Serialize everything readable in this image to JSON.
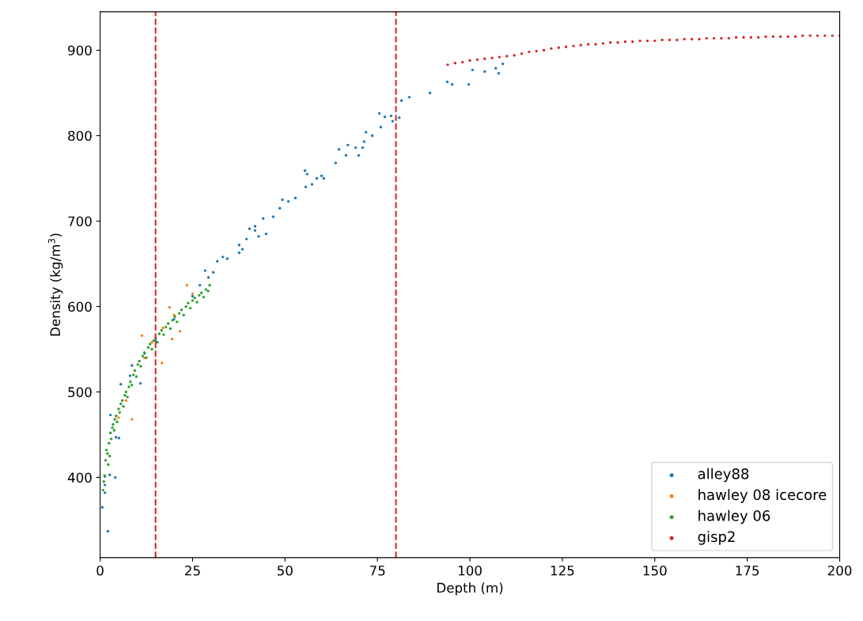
{
  "chart_data": {
    "type": "scatter",
    "xlabel": "Depth (m)",
    "ylabel": "Density (kg/m$^{3}$)",
    "xlim": [
      0,
      200
    ],
    "ylim": [
      306,
      945
    ],
    "xticks": [
      0,
      25,
      50,
      75,
      100,
      125,
      150,
      175,
      200
    ],
    "yticks": [
      400,
      500,
      600,
      700,
      800,
      900
    ],
    "grid": false,
    "legend": "bottom right",
    "marker": "circle",
    "ref_lines": [
      {
        "axis": "x",
        "value": 15,
        "color": "#d62728",
        "line_style": "dashed"
      },
      {
        "axis": "x",
        "value": 80,
        "color": "#d62728",
        "line_style": "dashed"
      }
    ],
    "series": [
      {
        "name": "alley88",
        "color": "#1f77b4",
        "x": [
          2.1,
          0.6,
          1.3,
          1.3,
          1.3,
          2.6,
          4.1,
          4.3,
          5.1,
          2.8,
          5.6,
          8.1,
          8.6,
          10.9,
          12,
          15,
          20,
          25,
          27,
          29.3,
          28.4,
          30.6,
          31.7,
          33.2,
          34.4,
          37.6,
          37.6,
          38.5,
          39.6,
          40.4,
          41.9,
          41.9,
          42.9,
          44.9,
          44.1,
          46.8,
          48.6,
          49.3,
          50.9,
          52.8,
          55.4,
          56.0,
          55.6,
          57.3,
          58.6,
          59.9,
          60.5,
          63.7,
          64.6,
          66.5,
          67.0,
          69.1,
          69.9,
          71.0,
          71.4,
          71.9,
          73.6,
          75.5,
          75.9,
          77.0,
          78.7,
          79.1,
          80.9,
          81.5,
          83.6,
          89.2,
          93.9,
          95.2,
          99.7,
          100.7,
          104,
          107,
          107.8,
          108.9
        ],
        "values": [
          337,
          365,
          382,
          391,
          401,
          403,
          400,
          447,
          446,
          473,
          509,
          519,
          531,
          510,
          545,
          560,
          585,
          612,
          625,
          634,
          642,
          640,
          653,
          658,
          656,
          672,
          663,
          667,
          679,
          691,
          694,
          689,
          682,
          685,
          703,
          705,
          715,
          725,
          723,
          727,
          759,
          755,
          740,
          743,
          750,
          753,
          750,
          768,
          784,
          777,
          789,
          786,
          777,
          786,
          793,
          804,
          800,
          826,
          810,
          822,
          823,
          817,
          821,
          841,
          845,
          850,
          863,
          860,
          860,
          877,
          875,
          879,
          873,
          884
        ]
      },
      {
        "name": "hawley 08 icecore",
        "color": "#ff7f0e",
        "x": [
          5,
          7,
          8.6,
          11.3,
          12,
          14,
          15,
          16.7,
          17,
          18.8,
          19.5,
          20,
          21.6,
          23.5,
          25
        ],
        "values": [
          470,
          490,
          468,
          566,
          540,
          558,
          null,
          534,
          575,
          599,
          562,
          590,
          571,
          625,
          615
        ]
      },
      {
        "name": "hawley 06",
        "color": "#2ca02c",
        "x": [
          0.8,
          1.0,
          1.2,
          1.5,
          1.7,
          2.0,
          2.2,
          2.4,
          2.6,
          2.8,
          3.0,
          3.3,
          3.5,
          3.8,
          4.0,
          4.3,
          4.6,
          5.0,
          5.3,
          5.6,
          6.0,
          6.3,
          6.7,
          7.0,
          7.4,
          7.8,
          8.2,
          8.6,
          9.0,
          9.4,
          9.8,
          10.2,
          10.6,
          11.0,
          11.5,
          12.0,
          12.5,
          13.0,
          13.5,
          14.0,
          14.5,
          15.0,
          15.5,
          16.0,
          16.6,
          17.2,
          17.8,
          18.4,
          19.0,
          19.6,
          20.2,
          20.8,
          21.4,
          22.0,
          22.6,
          23.2,
          23.8,
          24.4,
          25.0,
          25.6,
          26.2,
          26.8,
          27.4,
          28.0,
          28.6,
          29.2,
          29.6
        ],
        "values": [
          385,
          395,
          402,
          420,
          432,
          428,
          415,
          440,
          425,
          452,
          445,
          458,
          462,
          455,
          468,
          472,
          465,
          480,
          476,
          486,
          490,
          483,
          496,
          500,
          494,
          506,
          512,
          508,
          520,
          525,
          518,
          532,
          536,
          530,
          542,
          546,
          540,
          552,
          556,
          550,
          560,
          563,
          558,
          568,
          572,
          567,
          576,
          580,
          574,
          584,
          588,
          582,
          592,
          596,
          590,
          600,
          604,
          598,
          607,
          610,
          605,
          613,
          616,
          611,
          620,
          618,
          625
        ]
      },
      {
        "name": "gisp2",
        "color": "#d62728",
        "x": [
          94,
          96,
          98,
          100,
          102,
          104,
          106,
          108,
          110,
          112,
          114,
          116,
          118,
          120,
          122,
          124,
          126,
          128,
          130,
          132,
          134,
          136,
          138,
          140,
          142,
          144,
          146,
          148,
          150,
          152,
          154,
          156,
          158,
          160,
          162,
          164,
          166,
          168,
          170,
          172,
          174,
          176,
          178,
          180,
          182,
          184,
          186,
          188,
          190,
          192,
          194,
          196,
          198,
          200
        ],
        "values": [
          883,
          885,
          886,
          888,
          889,
          890,
          891,
          892,
          893,
          894,
          896,
          898,
          899,
          900,
          902,
          903,
          904,
          905,
          906,
          907,
          907,
          908,
          909,
          909,
          910,
          910,
          911,
          911,
          911,
          912,
          912,
          912,
          913,
          913,
          913,
          914,
          914,
          914,
          914,
          915,
          915,
          915,
          915,
          916,
          916,
          916,
          916,
          916,
          917,
          917,
          917,
          917,
          917,
          917
        ]
      }
    ]
  }
}
